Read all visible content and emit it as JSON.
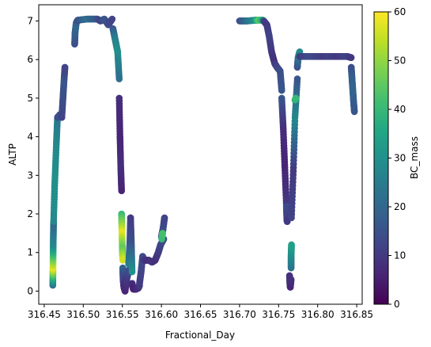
{
  "chart_data": {
    "type": "scatter",
    "title": "",
    "xlabel": "Fractional_Day",
    "ylabel": "ALTP",
    "xlim": [
      316.443,
      316.857
    ],
    "ylim": [
      -0.34,
      7.42
    ],
    "xticks": [
      316.45,
      316.5,
      316.55,
      316.6,
      316.65,
      316.7,
      316.75,
      316.8,
      316.85
    ],
    "xtick_labels": [
      "316.45",
      "316.50",
      "316.55",
      "316.60",
      "316.65",
      "316.70",
      "316.75",
      "316.80",
      "316.85"
    ],
    "yticks": [
      0,
      1,
      2,
      3,
      4,
      5,
      6,
      7
    ],
    "ytick_labels": [
      "0",
      "1",
      "2",
      "3",
      "4",
      "5",
      "6",
      "7"
    ],
    "colorbar": {
      "label": "BC_mass",
      "range": [
        0,
        60
      ],
      "ticks": [
        0,
        10,
        20,
        30,
        40,
        50,
        60
      ],
      "tick_labels": [
        "0",
        "10",
        "20",
        "30",
        "40",
        "50",
        "60"
      ],
      "colormap": "viridis"
    },
    "segments": [
      {
        "x": [
          316.461,
          316.4612,
          316.4615,
          316.462
        ],
        "y": [
          0.15,
          0.6,
          1.2,
          1.8
        ],
        "c": [
          22,
          58,
          28,
          20
        ]
      },
      {
        "x": [
          316.462,
          316.4635,
          316.4655,
          316.467
        ],
        "y": [
          1.8,
          2.8,
          3.8,
          4.5
        ],
        "c": [
          28,
          30,
          28,
          24
        ]
      },
      {
        "x": [
          316.467,
          316.4705,
          316.4725
        ],
        "y": [
          4.5,
          4.58,
          4.5
        ],
        "c": [
          14,
          16,
          12
        ]
      },
      {
        "x": [
          316.4725,
          316.474,
          316.4755,
          316.4765
        ],
        "y": [
          4.5,
          5.0,
          5.5,
          5.8
        ],
        "c": [
          12,
          14,
          16,
          12
        ]
      },
      {
        "x": [
          316.489,
          316.4895,
          316.491,
          316.493
        ],
        "y": [
          6.4,
          6.7,
          6.95,
          7.02
        ],
        "c": [
          14,
          18,
          20,
          16
        ]
      },
      {
        "x": [
          316.493,
          316.505,
          316.518,
          316.522
        ],
        "y": [
          7.02,
          7.05,
          7.05,
          7.0
        ],
        "c": [
          14,
          22,
          16,
          12
        ]
      },
      {
        "x": [
          316.522,
          316.527,
          316.532,
          316.537
        ],
        "y": [
          7.0,
          7.05,
          6.9,
          7.05
        ],
        "c": [
          12,
          16,
          14,
          12
        ]
      },
      {
        "x": [
          316.538,
          316.541,
          316.544,
          316.546
        ],
        "y": [
          6.8,
          6.5,
          6.2,
          5.5
        ],
        "c": [
          16,
          26,
          30,
          22
        ]
      },
      {
        "x": [
          316.546,
          316.547,
          316.548,
          316.549
        ],
        "y": [
          5.0,
          4.0,
          3.2,
          2.6
        ],
        "c": [
          8,
          6,
          8,
          6
        ]
      },
      {
        "x": [
          316.549,
          316.5495,
          316.55,
          316.5505
        ],
        "y": [
          2.0,
          1.5,
          1.1,
          0.8
        ],
        "c": [
          40,
          58,
          45,
          56
        ]
      },
      {
        "x": [
          316.5505,
          316.551,
          316.552,
          316.5535
        ],
        "y": [
          0.6,
          0.3,
          0.1,
          0.0
        ],
        "c": [
          20,
          12,
          8,
          6
        ]
      },
      {
        "x": [
          316.5535,
          316.556,
          316.5585
        ],
        "y": [
          0.0,
          0.35,
          0.55
        ],
        "c": [
          6,
          10,
          14
        ]
      },
      {
        "x": [
          316.558,
          316.5595,
          316.5605
        ],
        "y": [
          0.7,
          1.2,
          1.9
        ],
        "c": [
          26,
          18,
          10
        ]
      },
      {
        "x": [
          316.5605,
          316.5615,
          316.5625
        ],
        "y": [
          1.9,
          1.3,
          0.5
        ],
        "c": [
          10,
          14,
          30
        ]
      },
      {
        "x": [
          316.5625,
          316.564,
          316.5675,
          316.5705,
          316.572
        ],
        "y": [
          0.2,
          0.05,
          0.05,
          0.08,
          0.15
        ],
        "c": [
          8,
          6,
          6,
          8,
          10
        ]
      },
      {
        "x": [
          316.572,
          316.574,
          316.576,
          316.578
        ],
        "y": [
          0.2,
          0.5,
          0.9,
          0.8
        ],
        "c": [
          10,
          12,
          14,
          12
        ]
      },
      {
        "x": [
          316.578,
          316.584,
          316.588,
          316.592
        ],
        "y": [
          0.8,
          0.8,
          0.75,
          0.8
        ],
        "c": [
          10,
          8,
          10,
          8
        ]
      },
      {
        "x": [
          316.592,
          316.596,
          316.599,
          316.603
        ],
        "y": [
          0.8,
          1.0,
          1.2,
          1.35
        ],
        "c": [
          8,
          10,
          12,
          14
        ]
      },
      {
        "x": [
          316.6,
          316.601,
          316.602,
          316.604
        ],
        "y": [
          1.4,
          1.5,
          1.6,
          1.9
        ],
        "c": [
          14,
          12,
          14,
          12
        ]
      },
      {
        "x": [
          316.6005,
          316.6015
        ],
        "y": [
          1.35,
          1.5
        ],
        "c": [
          40,
          42
        ]
      },
      {
        "x": [
          316.7,
          316.71,
          316.72,
          316.725,
          316.73
        ],
        "y": [
          7.0,
          7.0,
          7.02,
          7.02,
          7.02
        ],
        "c": [
          14,
          22,
          30,
          46,
          36
        ]
      },
      {
        "x": [
          316.731,
          316.735,
          316.738,
          316.741,
          316.745
        ],
        "y": [
          7.0,
          6.9,
          6.6,
          6.2,
          5.9
        ],
        "c": [
          12,
          10,
          12,
          10,
          8
        ]
      },
      {
        "x": [
          316.745,
          316.748,
          316.752,
          316.754
        ],
        "y": [
          5.9,
          5.8,
          5.7,
          5.2
        ],
        "c": [
          10,
          12,
          14,
          16
        ]
      },
      {
        "x": [
          316.754,
          316.756,
          316.758,
          316.76
        ],
        "y": [
          5.0,
          4.2,
          3.2,
          2.2
        ],
        "c": [
          16,
          8,
          6,
          10
        ]
      },
      {
        "x": [
          316.76,
          316.7605,
          316.761
        ],
        "y": [
          2.2,
          1.9,
          1.8
        ],
        "c": [
          14,
          12,
          10
        ]
      },
      {
        "x": [
          316.764,
          316.7645,
          316.765,
          316.766
        ],
        "y": [
          0.4,
          0.2,
          0.1,
          0.3
        ],
        "c": [
          8,
          10,
          6,
          8
        ]
      },
      {
        "x": [
          316.766,
          316.766,
          316.7665
        ],
        "y": [
          0.6,
          0.9,
          1.2
        ],
        "c": [
          22,
          28,
          34
        ]
      },
      {
        "x": [
          316.7665,
          316.769,
          316.771,
          316.774
        ],
        "y": [
          1.9,
          3.2,
          4.5,
          5.5
        ],
        "c": [
          12,
          10,
          28,
          16
        ]
      },
      {
        "x": [
          316.771,
          316.772
        ],
        "y": [
          4.95,
          5.0
        ],
        "c": [
          38,
          40
        ]
      },
      {
        "x": [
          316.774,
          316.775,
          316.777
        ],
        "y": [
          5.8,
          6.05,
          6.2
        ],
        "c": [
          14,
          22,
          28
        ]
      },
      {
        "x": [
          316.777,
          316.79,
          316.8,
          316.812
        ],
        "y": [
          6.08,
          6.08,
          6.08,
          6.08
        ],
        "c": [
          10,
          14,
          12,
          10
        ]
      },
      {
        "x": [
          316.812,
          316.825,
          316.838,
          316.843
        ],
        "y": [
          6.08,
          6.08,
          6.08,
          6.05
        ],
        "c": [
          12,
          10,
          12,
          10
        ]
      },
      {
        "x": [
          316.843,
          316.844,
          316.845,
          316.846,
          316.847
        ],
        "y": [
          5.8,
          5.5,
          5.2,
          4.9,
          4.65
        ],
        "c": [
          14,
          18,
          20,
          18,
          16
        ]
      }
    ]
  }
}
